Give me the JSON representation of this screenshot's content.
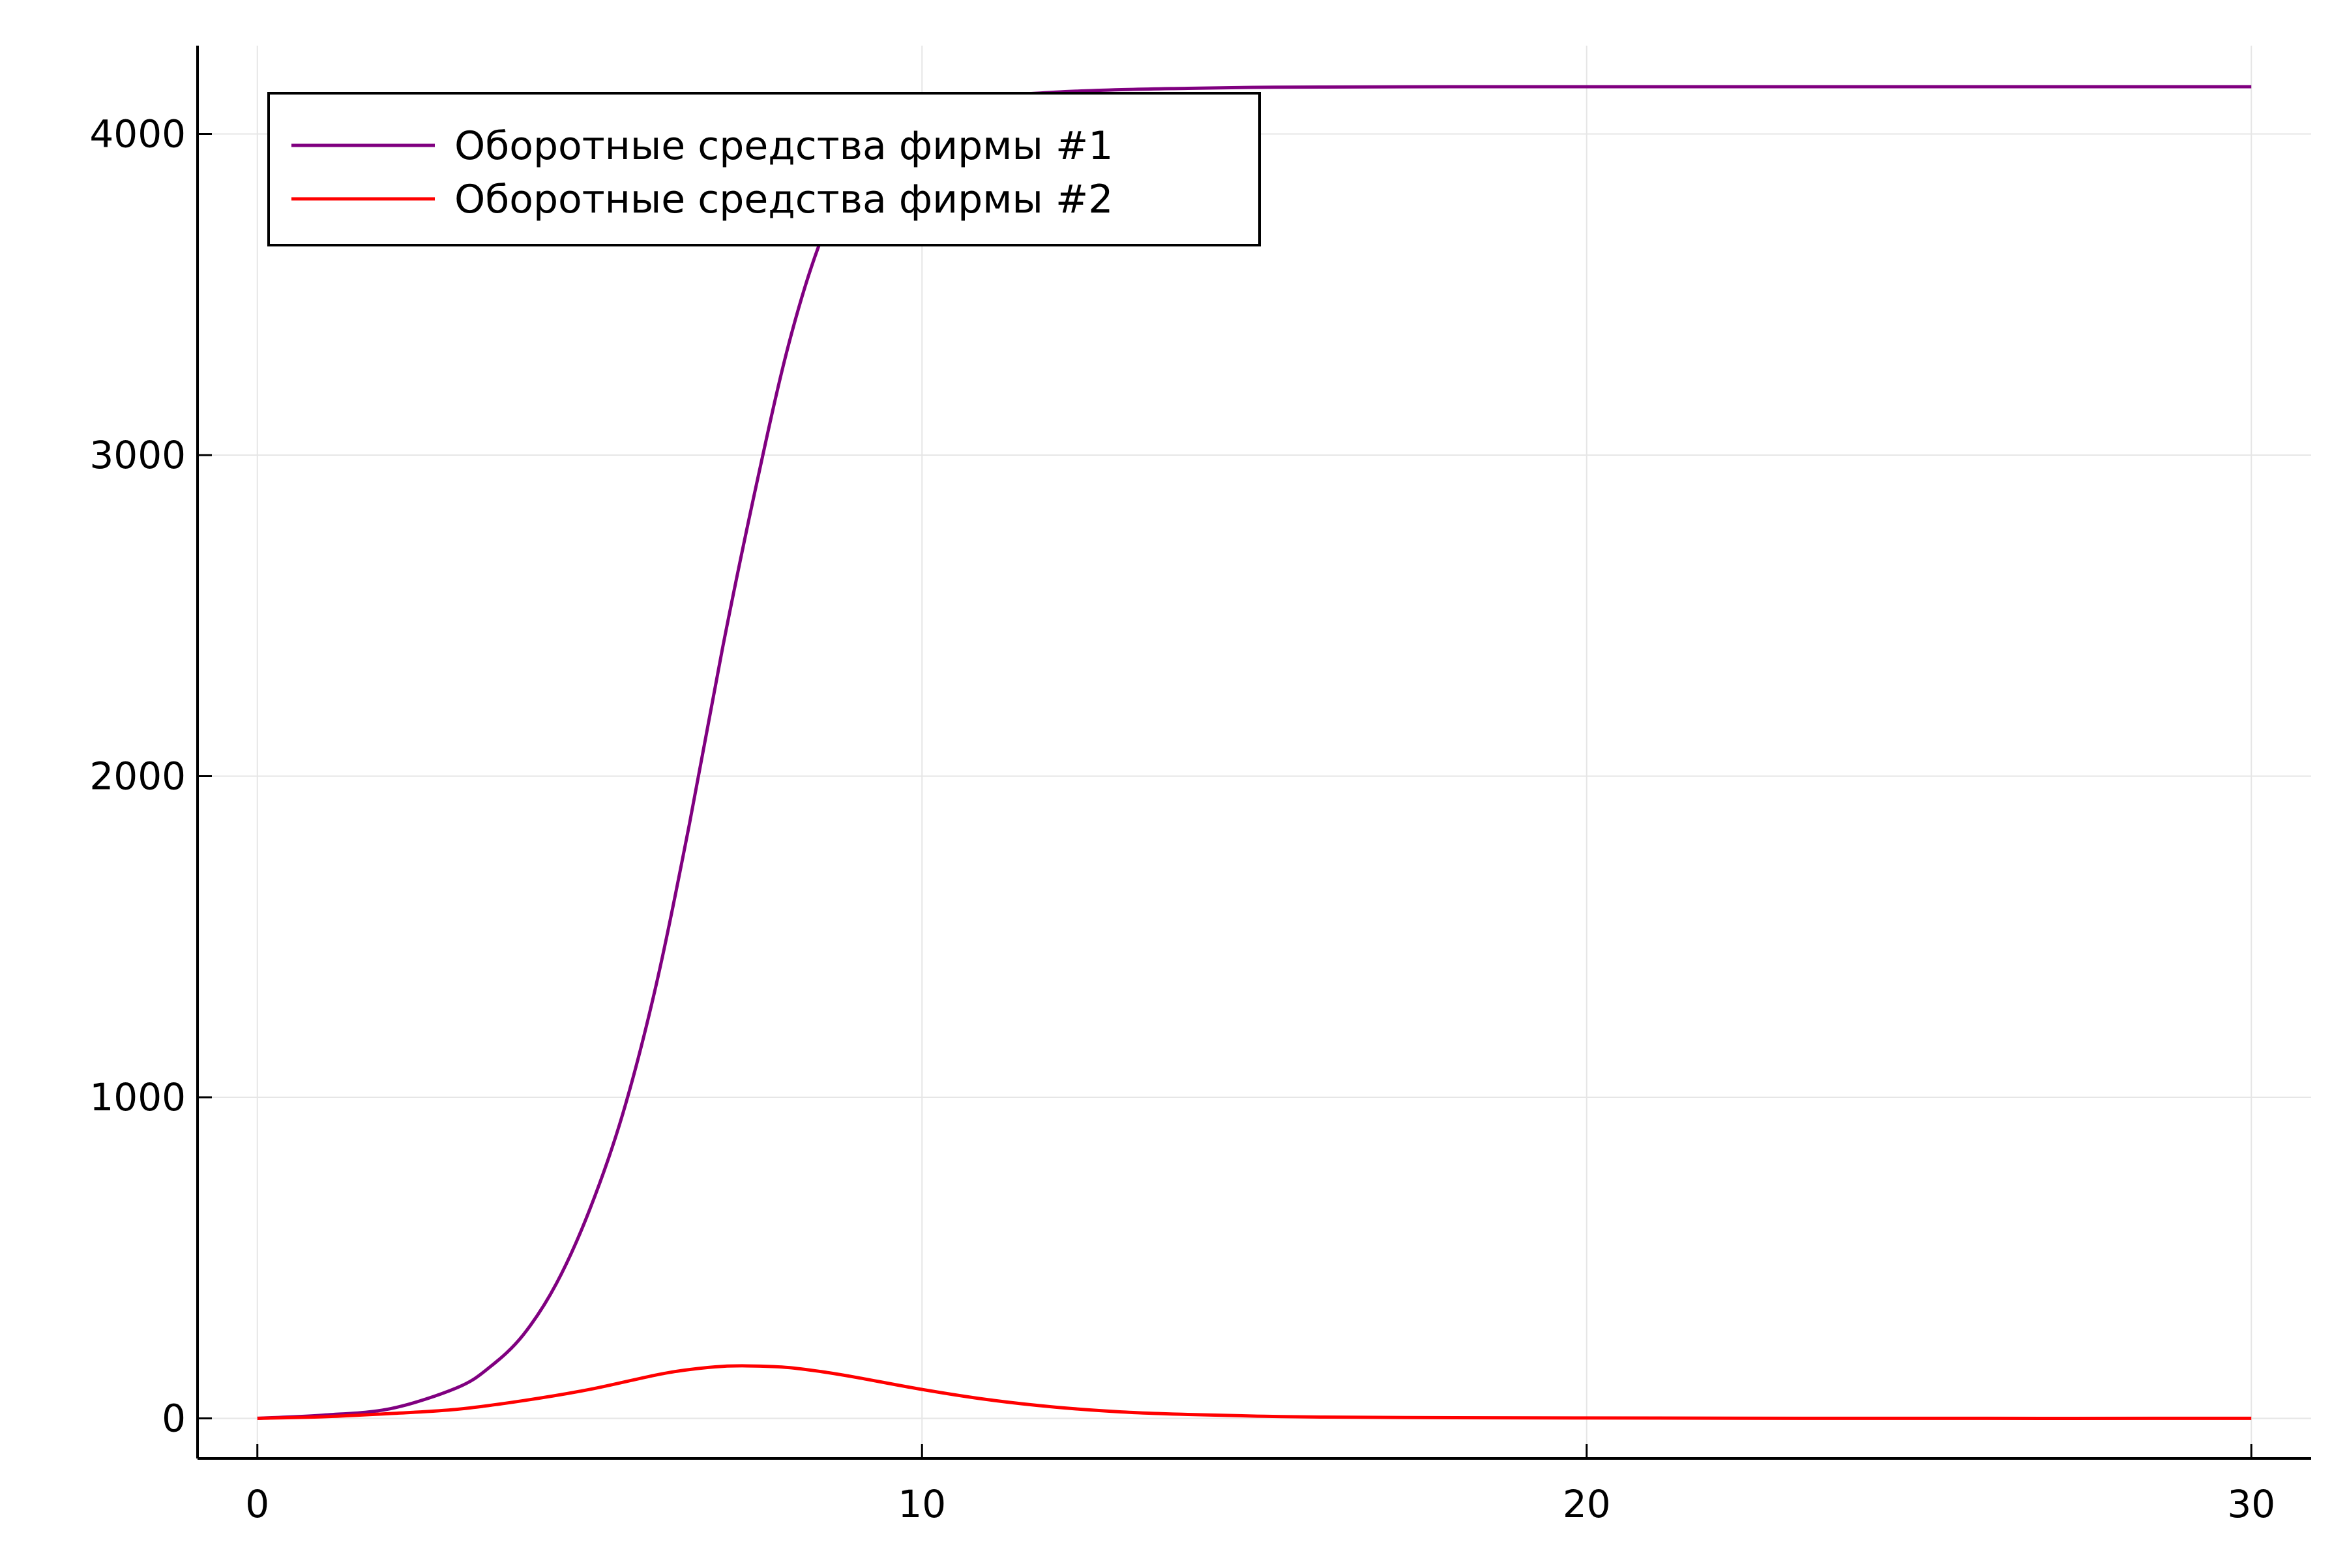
{
  "chart_data": {
    "type": "line",
    "title": "",
    "xlabel": "",
    "ylabel": "",
    "xlim": [
      -0.9,
      30.9
    ],
    "ylim": [
      -125,
      4275
    ],
    "x_ticks": [
      0,
      10,
      20,
      30
    ],
    "y_ticks": [
      0,
      1000,
      2000,
      3000,
      4000
    ],
    "x_tick_labels": [
      "0",
      "10",
      "20",
      "30"
    ],
    "y_tick_labels": [
      "0",
      "1000",
      "2000",
      "3000",
      "4000"
    ],
    "grid": true,
    "legend_position": "top-left",
    "series": [
      {
        "name": "Оборотные средства фирмы #1",
        "color": "#800080",
        "x": [
          0,
          1,
          2,
          3,
          3.5,
          4,
          4.5,
          5,
          5.5,
          6,
          6.5,
          7,
          7.5,
          8,
          8.5,
          9,
          9.5,
          10,
          10.5,
          11,
          12,
          13,
          14,
          15,
          16,
          18,
          20,
          25,
          30
        ],
        "values": [
          0,
          10,
          30,
          95,
          160,
          260,
          420,
          650,
          950,
          1350,
          1850,
          2400,
          2900,
          3350,
          3680,
          3880,
          3990,
          4060,
          4095,
          4115,
          4130,
          4138,
          4142,
          4145,
          4146,
          4147,
          4147,
          4147,
          4147
        ]
      },
      {
        "name": "Оборотные средства фирмы #2",
        "color": "#ff0000",
        "x": [
          0,
          1,
          2,
          3,
          4,
          5,
          6,
          6.5,
          7,
          7.5,
          8,
          8.5,
          9,
          10,
          11,
          12,
          13,
          14,
          15,
          16,
          18,
          20,
          25,
          30
        ],
        "values": [
          0,
          5,
          15,
          28,
          55,
          90,
          135,
          152,
          162,
          163,
          158,
          145,
          128,
          90,
          58,
          35,
          20,
          12,
          7,
          4,
          2,
          1,
          0,
          0
        ]
      }
    ]
  }
}
